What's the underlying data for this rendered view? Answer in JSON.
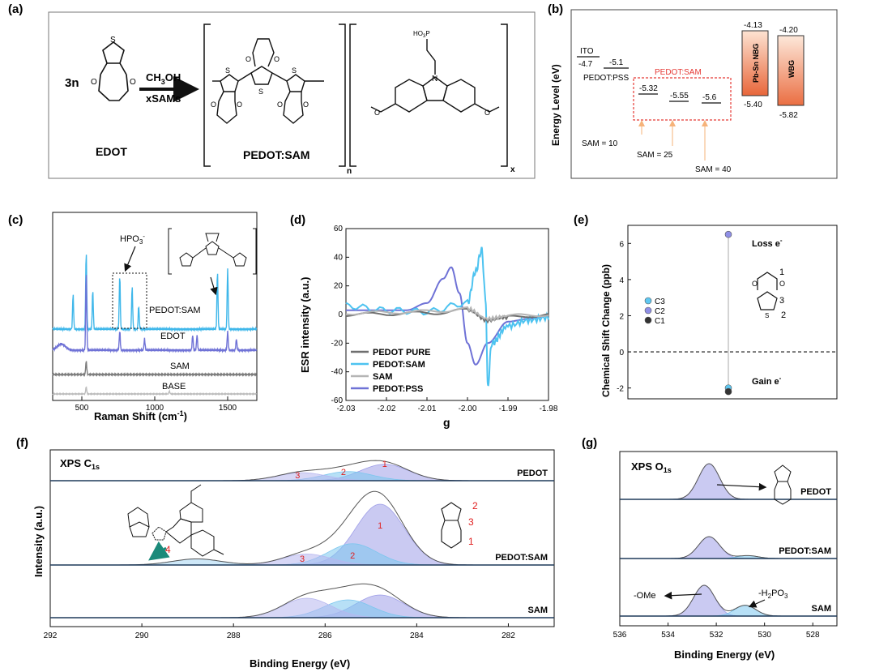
{
  "panels": {
    "a": {
      "label": "(a)",
      "reactant_coef": "3n",
      "reactant_name": "EDOT",
      "reagent_top": "CH",
      "reagent_top_sub": "3",
      "reagent_top_end": "OH",
      "reagent_bottom": "xSAMs",
      "product_name": "PEDOT:SAM",
      "subscript_n": "n",
      "subscript_x": "x",
      "phosphonate_label": "HO",
      "phosphonate_sub": "3",
      "phosphonate_end": "P",
      "nitrogen": "N",
      "atoms": {
        "S": "S",
        "O": "O"
      }
    },
    "b": {
      "label": "(b)",
      "ylabel": "Energy Level  (eV)",
      "ito": {
        "name": "ITO",
        "value": "-4.7"
      },
      "pedotpss": {
        "name": "PEDOT:PSS",
        "value": "-5.1"
      },
      "pedotsam_title": "PEDOT:SAM",
      "sam_levels": [
        {
          "value": "-5.32",
          "note": "SAM = 10"
        },
        {
          "value": "-5.55",
          "note": "SAM = 25"
        },
        {
          "value": "-5.6",
          "note": "SAM = 40"
        }
      ],
      "nbg": {
        "name": "Pb-Sn NBG",
        "top": "-4.13",
        "bottom": "-5.40"
      },
      "wbg": {
        "name": "WBG",
        "top": "-4.20",
        "bottom": "-5.82"
      },
      "colors": {
        "box_outline": "#e53935",
        "orange_top": "#fbd2b8",
        "orange_bottom": "#e8663a",
        "arrow": "#f6b37a"
      }
    },
    "c": {
      "label": "(c)",
      "xlabel": "Raman Shift (cm",
      "xlabel_sup": "-1",
      "xlabel_end": ")",
      "annotation": "HPO",
      "annotation_sub": "3",
      "annotation_sup": "-",
      "curves": [
        {
          "name": "PEDOT:SAM",
          "color": "#3fb7ea"
        },
        {
          "name": "EDOT",
          "color": "#6f72d6"
        },
        {
          "name": "SAM",
          "color": "#7d7d7d"
        },
        {
          "name": "BASE",
          "color": "#bdbdbd"
        }
      ]
    },
    "d": {
      "label": "(d)",
      "xlabel": "g",
      "ylabel": "ESR intensity (a.u.)",
      "legend": [
        {
          "name": "PEDOT PURE",
          "color": "#6f6f6f"
        },
        {
          "name": "PEDOT:SAM",
          "color": "#4dc3f0"
        },
        {
          "name": "SAM",
          "color": "#b5b5b5"
        },
        {
          "name": "PEDOT:PSS",
          "color": "#6f72d6"
        }
      ]
    },
    "e": {
      "label": "(e)",
      "ylabel": "Chemical Shift Change (ppb)",
      "loss": "Loss e",
      "gain": "Gain e",
      "electron_sup": "-",
      "legend": [
        {
          "name": "C3",
          "color": "#5fc8f2"
        },
        {
          "name": "C2",
          "color": "#8f8fe6"
        },
        {
          "name": "C1",
          "color": "#333333"
        }
      ],
      "atom_labels": [
        "1",
        "3",
        "2"
      ],
      "atom_s": "S",
      "atom_o": "O"
    },
    "f": {
      "label": "(f)",
      "title": "XPS C",
      "title_sub": "1s",
      "xlabel": "Binding Energy (eV)",
      "ylabel": "Intensity (a.u.)",
      "curves": [
        "PEDOT",
        "PEDOT:SAM",
        "SAM"
      ],
      "peak_labels": [
        "1",
        "2",
        "3",
        "4"
      ],
      "atom_labels": [
        "2",
        "3",
        "1"
      ]
    },
    "g": {
      "label": "(g)",
      "title": "XPS O",
      "title_sub": "1s",
      "xlabel": "Binding Energy (eV)",
      "curves": [
        "PEDOT",
        "PEDOT:SAM",
        "SAM"
      ],
      "ome": "-OMe",
      "h2po3": "-H",
      "h2po3_sub1": "2",
      "h2po3_mid": "PO",
      "h2po3_sub2": "3"
    }
  },
  "chart_data": [
    {
      "type": "line",
      "panel": "c",
      "xlabel": "Raman Shift (cm-1)",
      "xticks": [
        500,
        1000,
        1500
      ],
      "xlim": [
        300,
        1700
      ],
      "series": [
        {
          "name": "PEDOT:SAM",
          "peaks_x": [
            440,
            530,
            575,
            760,
            845,
            890,
            1430,
            1500
          ],
          "peaks_h": [
            0.45,
            1.0,
            0.5,
            0.7,
            0.55,
            0.3,
            0.75,
            0.8
          ]
        },
        {
          "name": "EDOT",
          "peaks_x": [
            530,
            760,
            930,
            1260,
            1290,
            1500,
            1560
          ],
          "peaks_h": [
            1.0,
            0.25,
            0.15,
            0.2,
            0.2,
            0.25,
            0.15
          ]
        },
        {
          "name": "SAM",
          "peaks_x": [
            530
          ],
          "peaks_h": [
            0.3
          ]
        },
        {
          "name": "BASE",
          "peaks_x": [
            530,
            1100
          ],
          "peaks_h": [
            0.25,
            0.1
          ]
        }
      ]
    },
    {
      "type": "line",
      "panel": "d",
      "xlabel": "g",
      "ylabel": "ESR intensity (a.u.)",
      "xlim": [
        -2.03,
        -1.98
      ],
      "ylim": [
        -60,
        60
      ],
      "xticks": [
        -2.03,
        -2.02,
        -2.01,
        -2.0,
        -1.99,
        -1.98
      ],
      "yticks": [
        -60,
        -40,
        -20,
        0,
        20,
        40,
        60
      ],
      "series": [
        {
          "name": "PEDOT:PSS",
          "x": [
            -2.03,
            -2.015,
            -2.01,
            -2.006,
            -2.004,
            -2.002,
            -2.0,
            -1.998,
            -1.995,
            -1.99,
            -1.985,
            -1.98
          ],
          "y": [
            3,
            3,
            8,
            25,
            33,
            15,
            -20,
            -35,
            -20,
            -5,
            -3,
            -1
          ]
        },
        {
          "name": "PEDOT:SAM",
          "x": [
            -2.03,
            -2.02,
            -2.01,
            -2.0,
            -1.998,
            -1.9965,
            -1.9955,
            -1.995,
            -1.994,
            -1.99,
            -1.985,
            -1.98
          ],
          "y": [
            6,
            3,
            2,
            8,
            30,
            45,
            10,
            -50,
            -20,
            -8,
            -4,
            -2
          ]
        },
        {
          "name": "PEDOT PURE",
          "x": [
            -2.03,
            -2.01,
            -2.0,
            -1.995,
            -1.99,
            -1.98
          ],
          "y": [
            0,
            1,
            3,
            -4,
            -2,
            0
          ]
        },
        {
          "name": "SAM",
          "x": [
            -2.03,
            -2.01,
            -2.0,
            -1.995,
            -1.99,
            -1.98
          ],
          "y": [
            1,
            2,
            4,
            -3,
            -1,
            0
          ]
        }
      ]
    },
    {
      "type": "scatter",
      "panel": "e",
      "ylabel": "Chemical Shift Change (ppb)",
      "ylim": [
        -2.6,
        7
      ],
      "yticks": [
        -2,
        0,
        2,
        4,
        6
      ],
      "series": [
        {
          "name": "C2",
          "y": [
            6.5
          ]
        },
        {
          "name": "C3",
          "y": [
            -2.0
          ]
        },
        {
          "name": "C1",
          "y": [
            -2.2
          ]
        }
      ]
    },
    {
      "type": "line",
      "panel": "f",
      "xlabel": "Binding Energy (eV)",
      "xlim": [
        292,
        281
      ],
      "xticks": [
        292,
        290,
        288,
        286,
        284,
        282
      ],
      "series": [
        {
          "name": "PEDOT",
          "peaks": [
            {
              "c": 284.7,
              "h": 0.45
            },
            {
              "c": 285.5,
              "h": 0.25
            },
            {
              "c": 286.5,
              "h": 0.22
            }
          ]
        },
        {
          "name": "PEDOT:SAM",
          "peaks": [
            {
              "c": 284.8,
              "h": 1.0
            },
            {
              "c": 285.4,
              "h": 0.35
            },
            {
              "c": 286.4,
              "h": 0.18
            },
            {
              "c": 288.8,
              "h": 0.1
            }
          ]
        },
        {
          "name": "SAM",
          "peaks": [
            {
              "c": 284.8,
              "h": 0.7
            },
            {
              "c": 285.5,
              "h": 0.55
            },
            {
              "c": 286.4,
              "h": 0.6
            }
          ]
        }
      ]
    },
    {
      "type": "line",
      "panel": "g",
      "xlabel": "Binding Energy (eV)",
      "xlim": [
        536,
        527
      ],
      "xticks": [
        536,
        534,
        532,
        530,
        528
      ],
      "series": [
        {
          "name": "PEDOT",
          "peaks": [
            {
              "c": 532.3,
              "h": 1.0
            }
          ]
        },
        {
          "name": "PEDOT:SAM",
          "peaks": [
            {
              "c": 532.3,
              "h": 0.75
            },
            {
              "c": 530.7,
              "h": 0.1
            }
          ]
        },
        {
          "name": "SAM",
          "peaks": [
            {
              "c": 532.5,
              "h": 1.0
            },
            {
              "c": 530.8,
              "h": 0.35
            }
          ]
        }
      ]
    }
  ]
}
